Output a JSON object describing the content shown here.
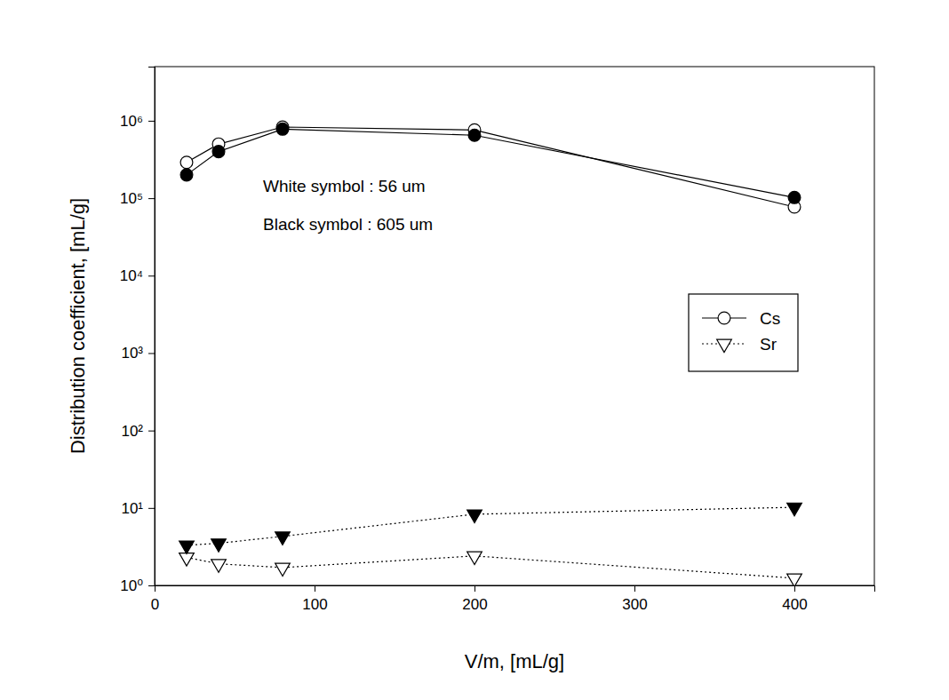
{
  "chart_data": {
    "type": "line",
    "x_label": "V/m, [mL/g]",
    "y_label": "Distribution coefficient, [mL/g]",
    "annotations": [
      "White symbol : 56 um",
      "Black symbol : 605 um"
    ],
    "x": [
      20,
      40,
      80,
      200,
      400
    ],
    "series": [
      {
        "name": "Cs",
        "color": "#ffffff",
        "marker": "circle",
        "line_style": "solid",
        "values": [
          290000,
          500000,
          830000,
          760000,
          77000
        ]
      },
      {
        "name": "Cs",
        "color": "#000000",
        "marker": "circle",
        "line_style": "solid",
        "values": [
          200000,
          400000,
          780000,
          650000,
          102000
        ]
      },
      {
        "name": "Sr",
        "color": "#ffffff",
        "marker": "triangle-down",
        "line_style": "dotted",
        "values": [
          2.3,
          1.9,
          1.7,
          2.4,
          1.24
        ]
      },
      {
        "name": "Sr",
        "color": "#000000",
        "marker": "triangle-down",
        "line_style": "dotted",
        "values": [
          3.3,
          3.5,
          4.3,
          8.3,
          10.2
        ]
      }
    ],
    "xlim": [
      0,
      450
    ],
    "xticks": [
      0,
      100,
      200,
      300,
      400
    ],
    "ylim": [
      1,
      5000000
    ],
    "yticks": [
      {
        "value": 1,
        "label": "10⁰"
      },
      {
        "value": 10,
        "label": "10¹"
      },
      {
        "value": 100,
        "label": "10²"
      },
      {
        "value": 1000,
        "label": "10³"
      },
      {
        "value": 10000,
        "label": "10⁴"
      },
      {
        "value": 100000,
        "label": "10⁵"
      },
      {
        "value": 1000000,
        "label": "10⁶"
      }
    ],
    "log": "y",
    "grid": false,
    "legend": "right"
  }
}
